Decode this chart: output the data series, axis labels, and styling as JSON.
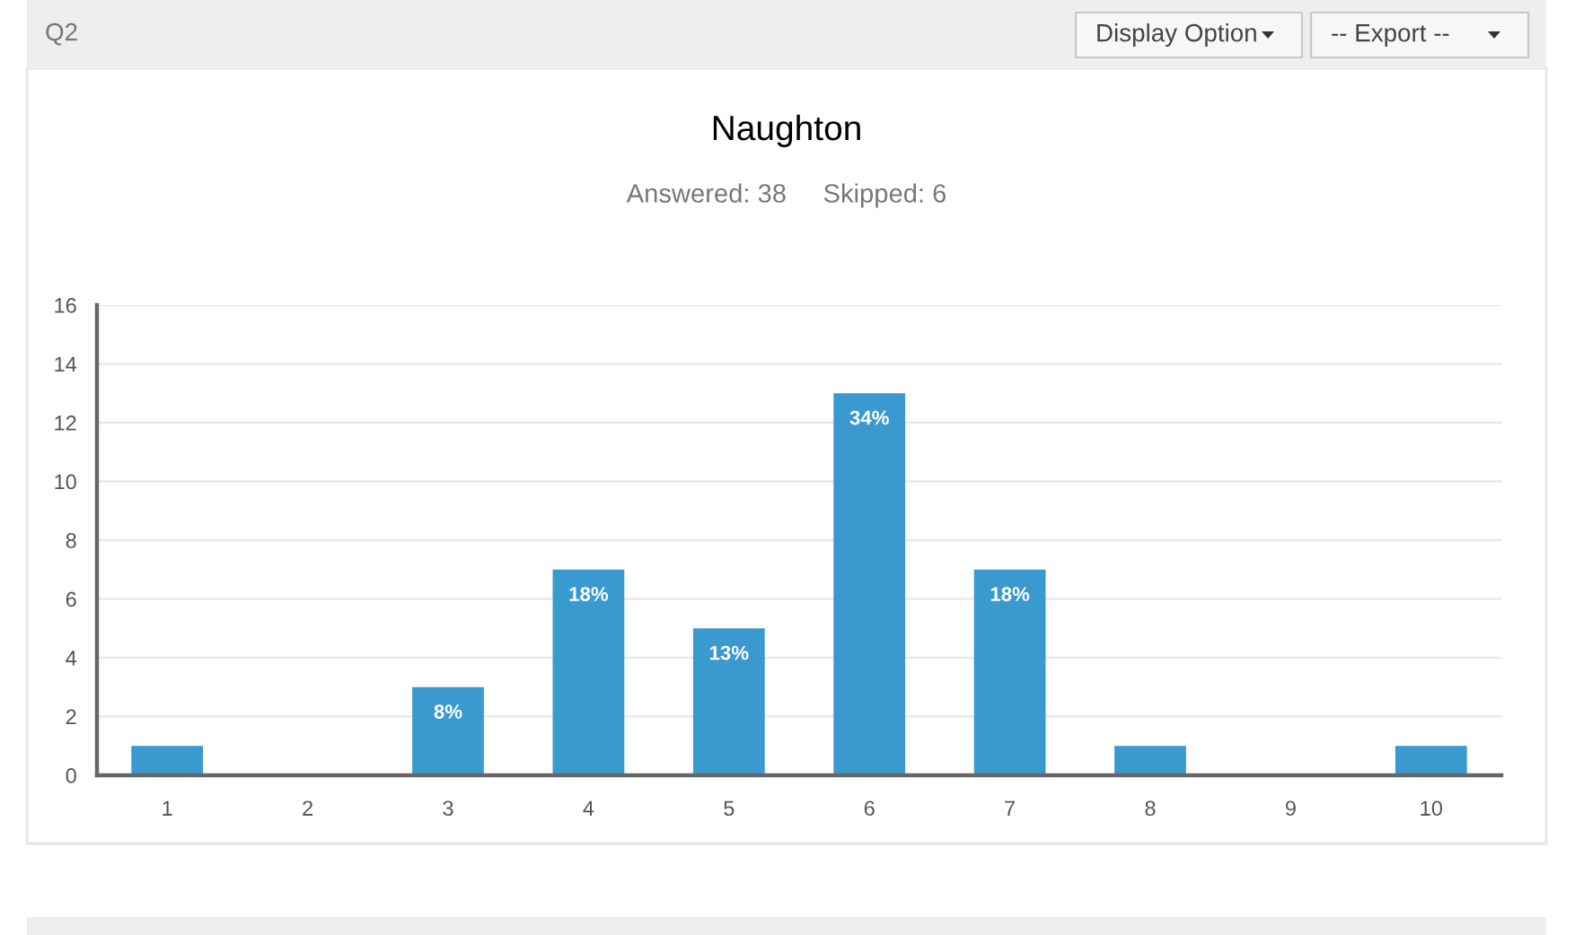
{
  "chart_data": {
    "type": "bar",
    "title": "Naughton",
    "subtitle": "Answered: 38     Skipped: 6",
    "annotations": [
      "Q2",
      "Display Option",
      "-- Export --",
      {
        "text": "8%",
        "x": "3",
        "y": 3
      },
      {
        "text": "18%",
        "x": "4",
        "y": 7
      },
      {
        "text": "13%",
        "x": "5",
        "y": 5
      },
      {
        "text": "34%",
        "x": "6",
        "y": 13
      },
      {
        "text": "18%",
        "x": "7",
        "y": 7
      }
    ],
    "categories": [
      "1",
      "2",
      "3",
      "4",
      "5",
      "6",
      "7",
      "8",
      "9",
      "10"
    ],
    "values": [
      1,
      0,
      3,
      7,
      5,
      13,
      7,
      1,
      0,
      1
    ],
    "color": "#3a99cf",
    "ylim": [
      0,
      16
    ],
    "yticks": [
      0,
      2,
      4,
      6,
      8,
      10,
      12,
      14,
      16
    ],
    "grid": "y"
  }
}
